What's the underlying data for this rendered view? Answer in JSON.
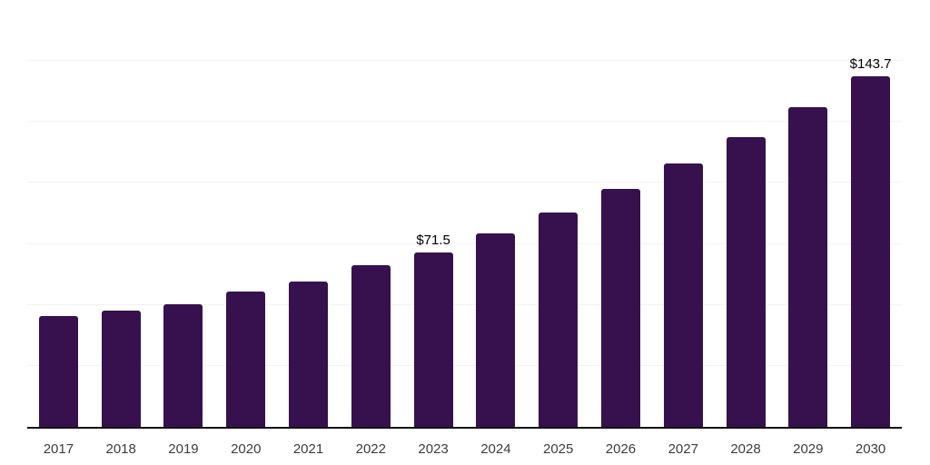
{
  "chart_data": {
    "type": "bar",
    "title": "",
    "xlabel": "",
    "ylabel": "",
    "categories": [
      "2017",
      "2018",
      "2019",
      "2020",
      "2021",
      "2022",
      "2023",
      "2024",
      "2025",
      "2026",
      "2027",
      "2028",
      "2029",
      "2030"
    ],
    "values": [
      45.3,
      47.7,
      50.4,
      55.5,
      59.6,
      66.3,
      71.5,
      79.5,
      88.0,
      97.5,
      107.9,
      118.8,
      131.0,
      143.7
    ],
    "data_labels": [
      "",
      "",
      "",
      "",
      "",
      "",
      "$71.5",
      "",
      "",
      "",
      "",
      "",
      "",
      "$143.7"
    ],
    "ylim": [
      0,
      175
    ],
    "gridline_step": 25,
    "grid": true,
    "legend": false,
    "colors": {
      "bar": "#36114E",
      "axis": "#111111",
      "gridline": "#f2f2f2",
      "data_label": "#000000",
      "tick_label": "#3d3d3d"
    }
  }
}
